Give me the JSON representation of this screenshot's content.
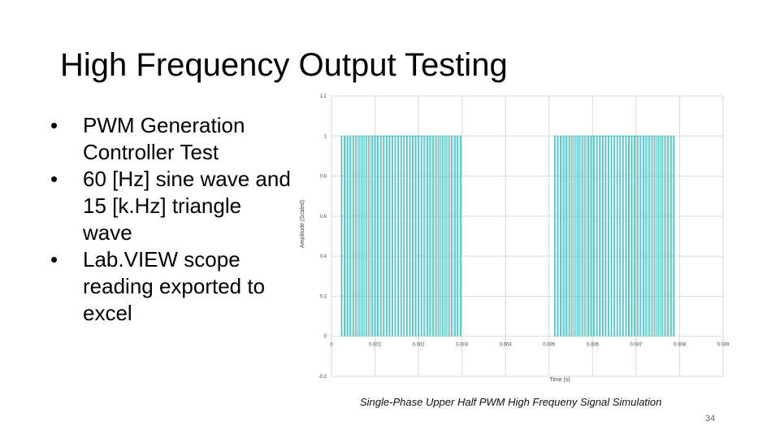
{
  "slide": {
    "title": "High Frequency Output Testing",
    "bullets": [
      "PWM Generation Controller Test",
      "60 [Hz] sine wave and 15 [k.Hz] triangle wave",
      "Lab.VIEW scope reading exported to excel"
    ],
    "bullet_glyph": "•",
    "caption": "Single-Phase Upper Half PWM High Frequeny Signal Simulation",
    "slide_number": "34"
  },
  "chart_data": {
    "type": "line",
    "title": "",
    "xlabel": "Time (s)",
    "ylabel": "Amplitude (Scaled)",
    "xlim": [
      0,
      0.009
    ],
    "ylim": [
      -0.2,
      1.2
    ],
    "x_ticks": [
      "0",
      "0.001",
      "0.002",
      "0.003",
      "0.004",
      "0.005",
      "0.006",
      "0.007",
      "0.008",
      "0.009"
    ],
    "y_ticks": [
      "1.2",
      "1",
      "0.8",
      "0.6",
      "0.4",
      "0.2",
      "0",
      "-0.2"
    ],
    "grid": true,
    "line_color": "#4fc3c3",
    "series": [
      {
        "pulse_bursts": [
          {
            "start": 0.0002,
            "end": 0.003,
            "pulses": 42,
            "high": 1.0,
            "low": 0.0
          },
          {
            "start": 0.0051,
            "end": 0.0079,
            "pulses": 42,
            "high": 1.0,
            "low": 0.0
          }
        ]
      }
    ]
  }
}
